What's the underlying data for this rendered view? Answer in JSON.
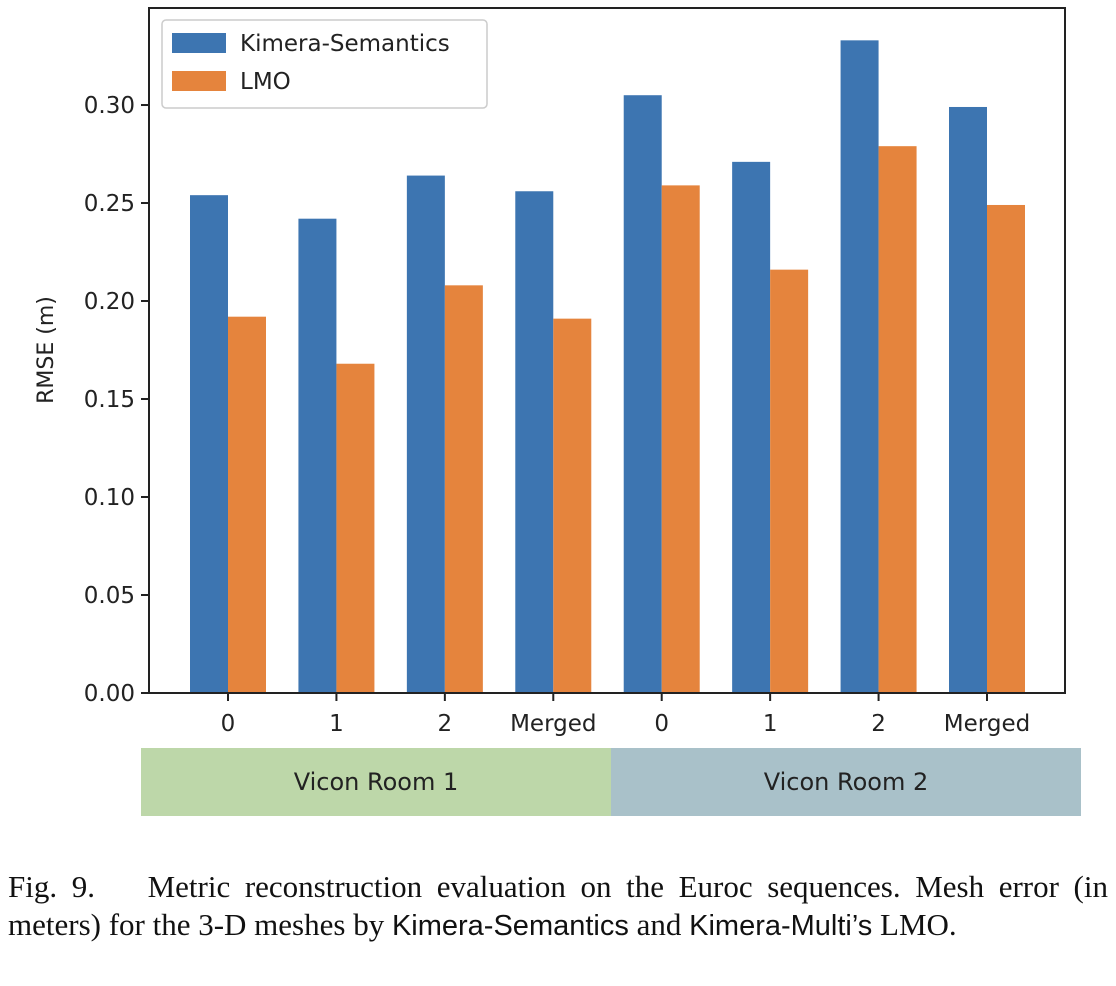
{
  "chart_data": {
    "type": "bar",
    "categories": [
      "0",
      "1",
      "2",
      "Merged",
      "0",
      "1",
      "2",
      "Merged"
    ],
    "series": [
      {
        "name": "Kimera-Semantics",
        "color": "#3d75b1",
        "values": [
          0.254,
          0.242,
          0.264,
          0.256,
          0.305,
          0.271,
          0.333,
          0.299
        ]
      },
      {
        "name": "LMO",
        "color": "#e5843d",
        "values": [
          0.192,
          0.168,
          0.208,
          0.191,
          0.259,
          0.216,
          0.279,
          0.249
        ]
      }
    ],
    "ylabel": "RMSE (m)",
    "xlabel": "",
    "ylim": [
      0,
      0.3495
    ],
    "yticks": [
      "0.00",
      "0.05",
      "0.10",
      "0.15",
      "0.20",
      "0.25",
      "0.30"
    ],
    "legend_position": "upper-left",
    "grid": false,
    "groups": [
      {
        "label": "Vicon Room 1",
        "color": "#bdd7a9"
      },
      {
        "label": "Vicon Room 2",
        "color": "#a9c1c9"
      }
    ]
  },
  "caption": {
    "fig_label": "Fig. 9.",
    "text_part1": "Metric reconstruction evaluation on the Euroc sequences. Mesh error (in meters) for the 3-D meshes by",
    "method_a": "Kimera-Semantics",
    "text_part2": "and",
    "method_b": "Kimera-Multi’s",
    "text_part3": "LMO."
  }
}
